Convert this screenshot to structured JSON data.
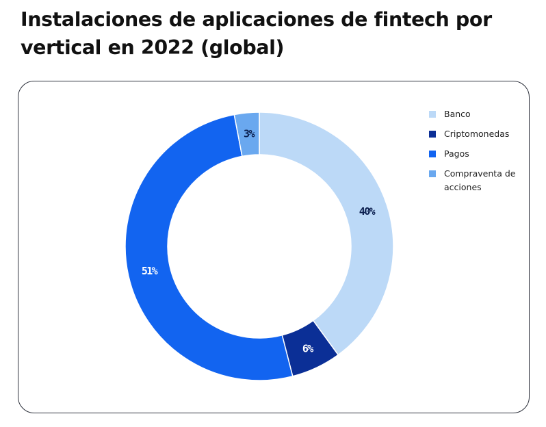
{
  "title": "Instalaciones de aplicaciones de fintech por vertical en 2022 (global)",
  "chart_data": {
    "type": "pie",
    "title": "Instalaciones de aplicaciones de fintech por vertical en 2022 (global)",
    "slices": [
      {
        "name": "Banco",
        "value": 40,
        "label": "40%",
        "color": "#bcd9f7",
        "label_color": "#0b1f4f"
      },
      {
        "name": "Criptomonedas",
        "value": 6,
        "label": "6%",
        "color": "#0b2f96",
        "label_color": "#ffffff"
      },
      {
        "name": "Pagos",
        "value": 51,
        "label": "51%",
        "color": "#1264f0",
        "label_color": "#ffffff"
      },
      {
        "name": "Compraventa de acciones",
        "value": 3,
        "label": "3%",
        "color": "#6aa8ef",
        "label_color": "#0b1f4f"
      }
    ],
    "legend": {
      "position": "right",
      "items": [
        "Banco",
        "Criptomonedas",
        "Pagos",
        "Compraventa de acciones"
      ]
    }
  }
}
